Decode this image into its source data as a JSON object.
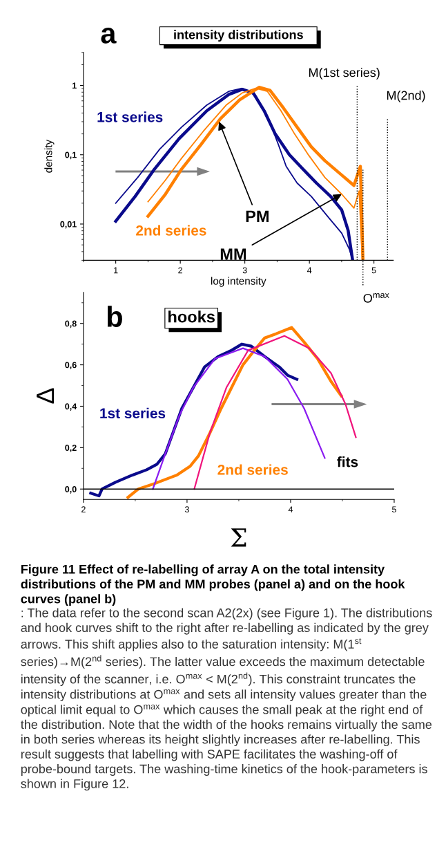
{
  "chart_data": [
    {
      "type": "line",
      "title": "intensity distributions",
      "xlabel": "log intensity",
      "ylabel": "density",
      "log": "y",
      "xlim": [
        0.5,
        5.3
      ],
      "ylim": [
        0.003,
        3
      ],
      "xticks": [
        1,
        2,
        3,
        4,
        5
      ],
      "yticks": [
        {
          "value": 0.01,
          "label": "0,01"
        },
        {
          "value": 0.1,
          "label": "0,1"
        },
        1
      ],
      "grid": false,
      "legend": false,
      "series": [
        {
          "color": "#0a0a8c",
          "x": [
            1,
            1.3,
            1.6,
            1.98,
            2.41,
            2.75,
            2.96,
            3.13,
            3.3,
            3.47,
            3.69,
            3.9,
            4.11,
            4.33,
            4.5,
            4.6,
            4.67
          ],
          "values": [
            0.011,
            0.025,
            0.062,
            0.17,
            0.43,
            0.74,
            0.88,
            0.78,
            0.43,
            0.2,
            0.1,
            0.062,
            0.039,
            0.025,
            0.016,
            0.0081,
            0.003
          ]
        },
        {
          "color": "#0a0a8c",
          "x": [
            1,
            1.34,
            1.68,
            2.02,
            2.41,
            2.75,
            2.96,
            3.17,
            3.35,
            3.52,
            3.64,
            3.81,
            4.03,
            4.28,
            4.5,
            4.62,
            4.67
          ],
          "values": [
            0.02,
            0.047,
            0.12,
            0.25,
            0.52,
            0.82,
            0.91,
            0.71,
            0.36,
            0.14,
            0.068,
            0.039,
            0.025,
            0.013,
            0.0074,
            0.0043,
            0.003
          ]
        },
        {
          "color": "#ff8000",
          "x": [
            1.5,
            1.77,
            2.02,
            2.32,
            2.62,
            2.92,
            3.22,
            3.39,
            3.6,
            3.81,
            4.03,
            4.24,
            4.5,
            4.69,
            4.79,
            4.83
          ],
          "values": [
            0.013,
            0.027,
            0.062,
            0.14,
            0.33,
            0.62,
            0.94,
            0.85,
            0.47,
            0.25,
            0.13,
            0.082,
            0.051,
            0.036,
            0.068,
            0.003
          ]
        },
        {
          "color": "#ff8000",
          "x": [
            1.5,
            1.77,
            2.02,
            2.36,
            2.71,
            2.96,
            3.17,
            3.35,
            3.56,
            3.77,
            3.99,
            4.24,
            4.5,
            4.69,
            4.77,
            4.82
          ],
          "values": [
            0.021,
            0.043,
            0.089,
            0.22,
            0.52,
            0.78,
            0.91,
            0.82,
            0.43,
            0.2,
            0.098,
            0.047,
            0.027,
            0.017,
            0.03,
            0.003
          ]
        }
      ],
      "ref_lines": [
        {
          "axis": "x",
          "value": 4.74,
          "label": "M(1st series)",
          "line_style": "dotted"
        },
        {
          "axis": "x",
          "value": 4.83,
          "label": "O$^{max}$",
          "line_style": "dotted"
        },
        {
          "axis": "x",
          "value": 5.21,
          "label": "M(2nd)",
          "line_style": "dotted"
        }
      ],
      "annotations": [
        "a",
        "1st series",
        "2nd series",
        {
          "text": "PM",
          "x": 2.6,
          "y": 0.3
        },
        {
          "text": "MM",
          "x": 4.5,
          "y": 0.027
        }
      ]
    },
    {
      "type": "line",
      "title": "hooks",
      "xlabel": "Σ",
      "ylabel": "Δ",
      "xlim": [
        2,
        5
      ],
      "ylim": [
        -0.05,
        0.95
      ],
      "xticks": [
        2,
        3,
        4,
        5
      ],
      "yticks": [
        {
          "value": 0,
          "label": "0,0"
        },
        {
          "value": 0.2,
          "label": "0,2"
        },
        {
          "value": 0.4,
          "label": "0,4"
        },
        {
          "value": 0.6,
          "label": "0,6"
        },
        {
          "value": 0.8,
          "label": "0,8"
        }
      ],
      "grid": false,
      "legend": false,
      "series": [
        {
          "color": "#0a0a8c",
          "x": [
            2.07,
            2.15,
            2.18,
            2.31,
            2.47,
            2.61,
            2.71,
            2.79,
            2.87,
            2.95,
            3.06,
            3.17,
            3.3,
            3.43,
            3.53,
            3.62,
            3.75,
            3.89,
            3.97,
            4.06
          ],
          "values": [
            -0.02,
            -0.033,
            0,
            0.033,
            0.067,
            0.093,
            0.12,
            0.17,
            0.28,
            0.39,
            0.49,
            0.59,
            0.64,
            0.67,
            0.7,
            0.69,
            0.64,
            0.59,
            0.55,
            0.53
          ]
        },
        {
          "color": "#ff8000",
          "x": [
            2.43,
            2.53,
            2.69,
            2.9,
            3.03,
            3.11,
            3.22,
            3.33,
            3.43,
            3.54,
            3.65,
            3.75,
            3.86,
            4.01,
            4.13,
            4.26,
            4.39,
            4.49
          ],
          "values": [
            -0.04,
            0,
            0.027,
            0.067,
            0.11,
            0.16,
            0.27,
            0.39,
            0.49,
            0.6,
            0.67,
            0.73,
            0.75,
            0.78,
            0.71,
            0.63,
            0.52,
            0.45
          ]
        },
        {
          "color": "#8a1cf0",
          "x": [
            2.67,
            2.79,
            2.93,
            3.06,
            3.27,
            3.54,
            3.75,
            3.97,
            4.13,
            4.33
          ],
          "values": [
            0,
            0.17,
            0.36,
            0.49,
            0.63,
            0.68,
            0.64,
            0.53,
            0.39,
            0.15
          ]
        },
        {
          "color": "#f0147c",
          "x": [
            3.07,
            3.22,
            3.38,
            3.59,
            3.94,
            4.18,
            4.39,
            4.53,
            4.63
          ],
          "values": [
            0,
            0.27,
            0.49,
            0.67,
            0.74,
            0.68,
            0.56,
            0.41,
            0.25
          ]
        }
      ],
      "ref_lines": [
        {
          "axis": "y",
          "value": 0,
          "color": "#000000",
          "line_style": "solid"
        }
      ],
      "annotations": [
        "b",
        "Figure 11 Effect of re-labelling of array A on the total intensity distributions of the PM and MM probes (panel a) and on the hook curves (panel b)",
        ": The data refer to the second scan A2(2x) (see Figure 1). The distributions and hook curves shift to the right after re-labelling as indicated by the grey arrows. This shift applies also to the saturation intensity: M(1$^{st}$ series)→M(2$^{nd}$ series). The latter value exceeds the maximum detectable intensity of the scanner, i.e. O$^{max}$ < M(2$^{nd}$). This constraint truncates the intensity distributions at O$^{max}$ and sets all intensity values greater than the optical limit equal to O$^{max}$ which causes the small peak at the right end of the distribution. Note that the width of the hooks remains virtually the same in both series whereas its height slightly increases after re-labelling. This result suggests that labelling with SAPE facilitates the washing-off of probe-bound targets. The washing-time kinetics of the hook-parameters is shown in Figure 12.",
        "1st series",
        "2nd series",
        "fits"
      ]
    }
  ]
}
